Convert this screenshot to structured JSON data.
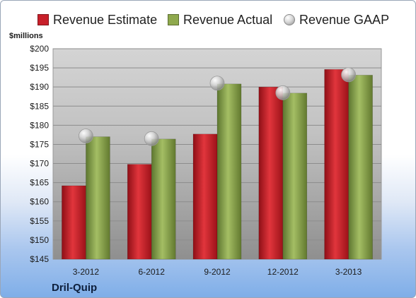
{
  "chart_data": {
    "type": "bar",
    "categories": [
      "3-2012",
      "6-2012",
      "9-2012",
      "12-2012",
      "3-2013"
    ],
    "series": [
      {
        "name": "Revenue Estimate",
        "values": [
          164.2,
          169.8,
          177.7,
          190.0,
          194.6
        ],
        "color": "#c8202a"
      },
      {
        "name": "Revenue Actual",
        "values": [
          177.0,
          176.4,
          190.8,
          188.4,
          193.1
        ],
        "color": "#8fa94d"
      },
      {
        "name": "Revenue GAAP",
        "values": [
          177.2,
          176.5,
          191.0,
          188.5,
          193.2
        ],
        "color": "#b8b8b8",
        "marker": "sphere"
      }
    ],
    "yticks": [
      "$145",
      "$150",
      "$155",
      "$160",
      "$165",
      "$170",
      "$175",
      "$180",
      "$185",
      "$190",
      "$195",
      "$200"
    ],
    "ylim": [
      145,
      200
    ],
    "ylabel": "$millions",
    "grid": true,
    "legend": "top"
  },
  "company": "Dril-Quip"
}
